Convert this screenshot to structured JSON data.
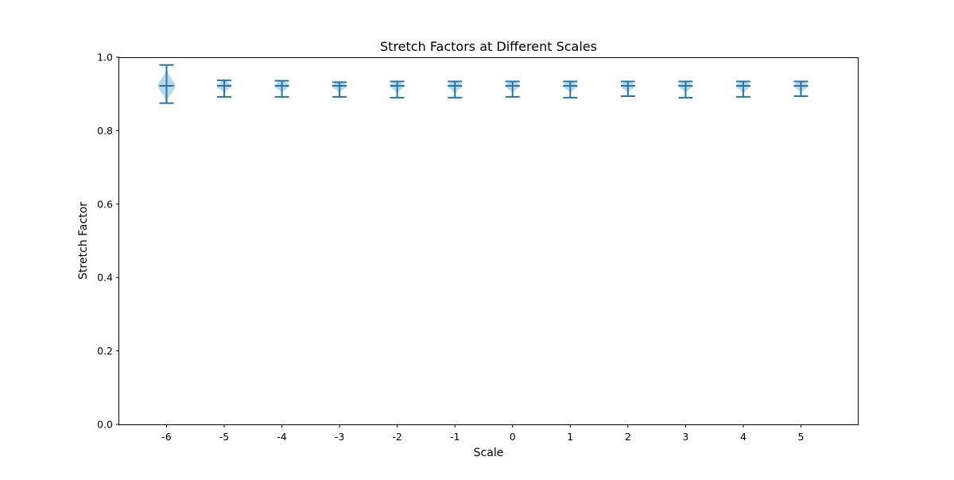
{
  "chart_data": {
    "type": "violin",
    "title": "Stretch Factors at Different Scales",
    "xlabel": "Scale",
    "ylabel": "Stretch Factor",
    "ylim": [
      0.0,
      1.0
    ],
    "yticks": [
      "0.0",
      "0.2",
      "0.4",
      "0.6",
      "0.8",
      "1.0"
    ],
    "grid": false,
    "colors": {
      "body": "#1f77b4",
      "body_opacity": 0.3,
      "lines": "#1f77b4"
    },
    "categories": [
      "-6",
      "-5",
      "-4",
      "-3",
      "-2",
      "-1",
      "0",
      "1",
      "2",
      "3",
      "4",
      "5"
    ],
    "violins": [
      {
        "scale": "-6",
        "min": 0.875,
        "max": 0.979,
        "median": 0.922,
        "density_max": 0.3
      },
      {
        "scale": "-5",
        "min": 0.892,
        "max": 0.937,
        "median": 0.922,
        "density_max": 0.25
      },
      {
        "scale": "-4",
        "min": 0.892,
        "max": 0.936,
        "median": 0.922,
        "density_max": 0.25
      },
      {
        "scale": "-3",
        "min": 0.892,
        "max": 0.932,
        "median": 0.922,
        "density_max": 0.25
      },
      {
        "scale": "-2",
        "min": 0.89,
        "max": 0.934,
        "median": 0.922,
        "density_max": 0.25
      },
      {
        "scale": "-1",
        "min": 0.89,
        "max": 0.934,
        "median": 0.922,
        "density_max": 0.25
      },
      {
        "scale": "0",
        "min": 0.892,
        "max": 0.934,
        "median": 0.922,
        "density_max": 0.25
      },
      {
        "scale": "1",
        "min": 0.89,
        "max": 0.934,
        "median": 0.922,
        "density_max": 0.25
      },
      {
        "scale": "2",
        "min": 0.894,
        "max": 0.934,
        "median": 0.922,
        "density_max": 0.25
      },
      {
        "scale": "3",
        "min": 0.89,
        "max": 0.934,
        "median": 0.922,
        "density_max": 0.25
      },
      {
        "scale": "4",
        "min": 0.892,
        "max": 0.934,
        "median": 0.922,
        "density_max": 0.25
      },
      {
        "scale": "5",
        "min": 0.894,
        "max": 0.934,
        "median": 0.922,
        "density_max": 0.25
      }
    ]
  }
}
